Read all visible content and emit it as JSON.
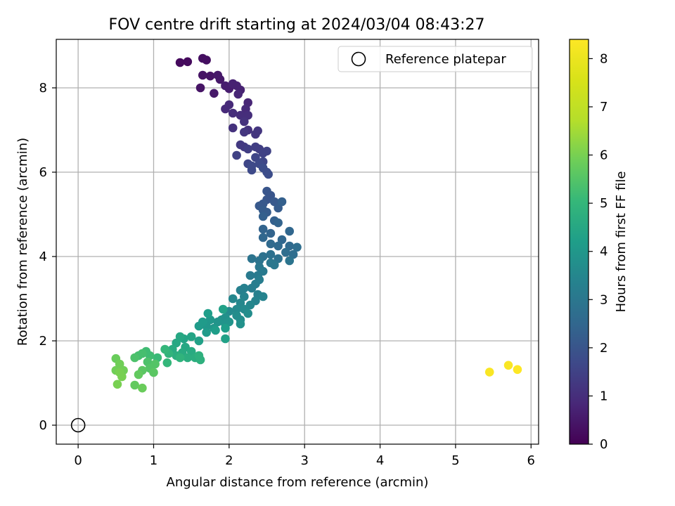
{
  "chart_data": {
    "type": "scatter",
    "title": "FOV centre drift starting at 2024/03/04 08:43:27",
    "xlabel": "Angular distance from reference (arcmin)",
    "ylabel": "Rotation from reference (arcmin)",
    "xlim": [
      -0.29,
      6.1
    ],
    "ylim": [
      -0.45,
      9.15
    ],
    "xticks": [
      0,
      1,
      2,
      3,
      4,
      5,
      6
    ],
    "yticks": [
      0,
      2,
      4,
      6,
      8
    ],
    "grid": true,
    "legend": {
      "position": "top-right",
      "entries": [
        {
          "label": "Reference platepar",
          "marker": "open-circle"
        }
      ]
    },
    "reference_point": {
      "x": 0,
      "y": 0
    },
    "colorbar": {
      "label": "Hours from first FF file",
      "colormap": "viridis",
      "range": [
        0,
        8.4
      ],
      "ticks": [
        0,
        1,
        2,
        3,
        4,
        5,
        6,
        7,
        8
      ]
    },
    "series": [
      {
        "color_by": "hours",
        "points": [
          {
            "x": 1.35,
            "y": 8.6,
            "c": 0.2
          },
          {
            "x": 1.45,
            "y": 8.62,
            "c": 0.2
          },
          {
            "x": 1.65,
            "y": 8.7,
            "c": 0.3
          },
          {
            "x": 1.7,
            "y": 8.66,
            "c": 0.3
          },
          {
            "x": 1.65,
            "y": 8.3,
            "c": 0.4
          },
          {
            "x": 1.75,
            "y": 8.28,
            "c": 0.4
          },
          {
            "x": 1.62,
            "y": 8.0,
            "c": 0.4
          },
          {
            "x": 1.85,
            "y": 8.3,
            "c": 0.5
          },
          {
            "x": 1.88,
            "y": 8.2,
            "c": 0.5
          },
          {
            "x": 1.8,
            "y": 7.87,
            "c": 0.5
          },
          {
            "x": 1.95,
            "y": 8.05,
            "c": 0.6
          },
          {
            "x": 2.0,
            "y": 7.98,
            "c": 0.6
          },
          {
            "x": 2.05,
            "y": 8.1,
            "c": 0.7
          },
          {
            "x": 2.1,
            "y": 8.05,
            "c": 0.7
          },
          {
            "x": 2.15,
            "y": 7.95,
            "c": 0.7
          },
          {
            "x": 2.12,
            "y": 7.85,
            "c": 0.8
          },
          {
            "x": 2.25,
            "y": 7.65,
            "c": 0.8
          },
          {
            "x": 2.22,
            "y": 7.5,
            "c": 0.9
          },
          {
            "x": 2.0,
            "y": 7.6,
            "c": 0.9
          },
          {
            "x": 1.95,
            "y": 7.5,
            "c": 0.9
          },
          {
            "x": 2.05,
            "y": 7.4,
            "c": 1.0
          },
          {
            "x": 2.15,
            "y": 7.35,
            "c": 1.0
          },
          {
            "x": 2.25,
            "y": 7.35,
            "c": 1.0
          },
          {
            "x": 2.2,
            "y": 7.2,
            "c": 1.1
          },
          {
            "x": 2.05,
            "y": 7.05,
            "c": 1.1
          },
          {
            "x": 2.25,
            "y": 7.0,
            "c": 1.1
          },
          {
            "x": 2.2,
            "y": 6.95,
            "c": 1.2
          },
          {
            "x": 2.35,
            "y": 6.9,
            "c": 1.2
          },
          {
            "x": 2.38,
            "y": 6.98,
            "c": 1.2
          },
          {
            "x": 2.15,
            "y": 6.65,
            "c": 1.3
          },
          {
            "x": 2.2,
            "y": 6.6,
            "c": 1.3
          },
          {
            "x": 2.25,
            "y": 6.55,
            "c": 1.4
          },
          {
            "x": 2.35,
            "y": 6.6,
            "c": 1.4
          },
          {
            "x": 2.4,
            "y": 6.55,
            "c": 1.4
          },
          {
            "x": 2.5,
            "y": 6.5,
            "c": 1.5
          },
          {
            "x": 2.45,
            "y": 6.45,
            "c": 1.5
          },
          {
            "x": 2.1,
            "y": 6.4,
            "c": 1.5
          },
          {
            "x": 2.35,
            "y": 6.35,
            "c": 1.6
          },
          {
            "x": 2.45,
            "y": 6.25,
            "c": 1.6
          },
          {
            "x": 2.25,
            "y": 6.2,
            "c": 1.6
          },
          {
            "x": 2.3,
            "y": 6.15,
            "c": 1.7
          },
          {
            "x": 2.4,
            "y": 6.2,
            "c": 1.7
          },
          {
            "x": 2.3,
            "y": 6.05,
            "c": 1.7
          },
          {
            "x": 2.45,
            "y": 6.1,
            "c": 1.8
          },
          {
            "x": 2.5,
            "y": 6.0,
            "c": 1.8
          },
          {
            "x": 2.52,
            "y": 5.95,
            "c": 1.8
          },
          {
            "x": 2.5,
            "y": 5.55,
            "c": 2.0
          },
          {
            "x": 2.55,
            "y": 5.45,
            "c": 2.0
          },
          {
            "x": 2.5,
            "y": 5.35,
            "c": 2.0
          },
          {
            "x": 2.6,
            "y": 5.3,
            "c": 2.1
          },
          {
            "x": 2.45,
            "y": 5.25,
            "c": 2.1
          },
          {
            "x": 2.4,
            "y": 5.2,
            "c": 2.1
          },
          {
            "x": 2.45,
            "y": 5.1,
            "c": 2.2
          },
          {
            "x": 2.5,
            "y": 5.05,
            "c": 2.2
          },
          {
            "x": 2.65,
            "y": 5.15,
            "c": 2.2
          },
          {
            "x": 2.7,
            "y": 5.3,
            "c": 2.3
          },
          {
            "x": 2.45,
            "y": 4.95,
            "c": 2.3
          },
          {
            "x": 2.6,
            "y": 4.85,
            "c": 2.3
          },
          {
            "x": 2.65,
            "y": 4.8,
            "c": 2.4
          },
          {
            "x": 2.45,
            "y": 4.65,
            "c": 2.4
          },
          {
            "x": 2.55,
            "y": 4.55,
            "c": 2.4
          },
          {
            "x": 2.8,
            "y": 4.6,
            "c": 2.5
          },
          {
            "x": 2.45,
            "y": 4.45,
            "c": 2.5
          },
          {
            "x": 2.7,
            "y": 4.4,
            "c": 2.5
          },
          {
            "x": 2.55,
            "y": 4.3,
            "c": 2.6
          },
          {
            "x": 2.65,
            "y": 4.25,
            "c": 2.6
          },
          {
            "x": 2.8,
            "y": 4.25,
            "c": 2.6
          },
          {
            "x": 2.9,
            "y": 4.22,
            "c": 2.7
          },
          {
            "x": 2.75,
            "y": 4.1,
            "c": 2.7
          },
          {
            "x": 2.85,
            "y": 4.05,
            "c": 2.7
          },
          {
            "x": 2.55,
            "y": 4.05,
            "c": 2.8
          },
          {
            "x": 2.45,
            "y": 4.0,
            "c": 2.8
          },
          {
            "x": 2.65,
            "y": 3.95,
            "c": 2.8
          },
          {
            "x": 2.8,
            "y": 3.9,
            "c": 2.9
          },
          {
            "x": 2.4,
            "y": 3.9,
            "c": 2.9
          },
          {
            "x": 2.3,
            "y": 3.95,
            "c": 2.9
          },
          {
            "x": 2.55,
            "y": 3.85,
            "c": 3.0
          },
          {
            "x": 2.6,
            "y": 3.8,
            "c": 3.0
          },
          {
            "x": 2.4,
            "y": 3.75,
            "c": 3.0
          },
          {
            "x": 2.45,
            "y": 3.65,
            "c": 3.1
          },
          {
            "x": 2.38,
            "y": 3.55,
            "c": 3.1
          },
          {
            "x": 2.28,
            "y": 3.55,
            "c": 3.1
          },
          {
            "x": 2.4,
            "y": 3.45,
            "c": 3.2
          },
          {
            "x": 2.35,
            "y": 3.35,
            "c": 3.2
          },
          {
            "x": 2.3,
            "y": 3.25,
            "c": 3.2
          },
          {
            "x": 2.2,
            "y": 3.25,
            "c": 3.3
          },
          {
            "x": 2.15,
            "y": 3.2,
            "c": 3.3
          },
          {
            "x": 2.38,
            "y": 3.1,
            "c": 3.3
          },
          {
            "x": 2.45,
            "y": 3.05,
            "c": 3.4
          },
          {
            "x": 2.35,
            "y": 2.95,
            "c": 3.4
          },
          {
            "x": 2.2,
            "y": 3.05,
            "c": 3.4
          },
          {
            "x": 2.05,
            "y": 3.0,
            "c": 3.5
          },
          {
            "x": 2.15,
            "y": 2.9,
            "c": 3.5
          },
          {
            "x": 2.28,
            "y": 2.85,
            "c": 3.5
          },
          {
            "x": 2.2,
            "y": 2.75,
            "c": 3.6
          },
          {
            "x": 2.1,
            "y": 2.75,
            "c": 3.6
          },
          {
            "x": 2.0,
            "y": 2.7,
            "c": 3.6
          },
          {
            "x": 2.25,
            "y": 2.65,
            "c": 3.7
          },
          {
            "x": 2.1,
            "y": 2.6,
            "c": 3.7
          },
          {
            "x": 2.15,
            "y": 2.5,
            "c": 3.7
          },
          {
            "x": 1.95,
            "y": 2.55,
            "c": 3.8
          },
          {
            "x": 1.9,
            "y": 2.5,
            "c": 3.8
          },
          {
            "x": 2.15,
            "y": 2.4,
            "c": 3.8
          },
          {
            "x": 2.0,
            "y": 2.45,
            "c": 3.9
          },
          {
            "x": 1.95,
            "y": 2.4,
            "c": 3.9
          },
          {
            "x": 1.85,
            "y": 2.45,
            "c": 3.9
          },
          {
            "x": 1.75,
            "y": 2.5,
            "c": 4.0
          },
          {
            "x": 1.8,
            "y": 2.3,
            "c": 4.0
          },
          {
            "x": 1.7,
            "y": 2.35,
            "c": 4.0
          },
          {
            "x": 1.65,
            "y": 2.45,
            "c": 4.1
          },
          {
            "x": 1.6,
            "y": 2.35,
            "c": 4.1
          },
          {
            "x": 1.7,
            "y": 2.2,
            "c": 4.1
          },
          {
            "x": 1.82,
            "y": 2.25,
            "c": 4.2
          },
          {
            "x": 1.95,
            "y": 2.3,
            "c": 4.2
          },
          {
            "x": 1.72,
            "y": 2.65,
            "c": 4.2
          },
          {
            "x": 1.92,
            "y": 2.75,
            "c": 4.3
          },
          {
            "x": 1.95,
            "y": 2.05,
            "c": 4.3
          },
          {
            "x": 1.6,
            "y": 2.0,
            "c": 4.3
          },
          {
            "x": 1.5,
            "y": 2.1,
            "c": 4.4
          },
          {
            "x": 1.4,
            "y": 2.05,
            "c": 4.4
          },
          {
            "x": 1.35,
            "y": 2.1,
            "c": 4.5
          },
          {
            "x": 1.3,
            "y": 1.95,
            "c": 4.5
          },
          {
            "x": 1.42,
            "y": 1.85,
            "c": 4.5
          },
          {
            "x": 1.5,
            "y": 1.75,
            "c": 4.6
          },
          {
            "x": 1.38,
            "y": 1.72,
            "c": 4.6
          },
          {
            "x": 1.25,
            "y": 1.8,
            "c": 4.6
          },
          {
            "x": 1.3,
            "y": 1.65,
            "c": 4.7
          },
          {
            "x": 1.45,
            "y": 1.6,
            "c": 4.7
          },
          {
            "x": 1.55,
            "y": 1.6,
            "c": 4.7
          },
          {
            "x": 1.62,
            "y": 1.55,
            "c": 4.8
          },
          {
            "x": 1.6,
            "y": 1.65,
            "c": 4.8
          },
          {
            "x": 1.35,
            "y": 1.6,
            "c": 4.9
          },
          {
            "x": 1.2,
            "y": 1.7,
            "c": 4.9
          },
          {
            "x": 1.15,
            "y": 1.8,
            "c": 5.0
          },
          {
            "x": 1.18,
            "y": 1.48,
            "c": 5.0
          },
          {
            "x": 1.05,
            "y": 1.6,
            "c": 5.1
          },
          {
            "x": 0.95,
            "y": 1.65,
            "c": 5.2
          },
          {
            "x": 0.9,
            "y": 1.75,
            "c": 5.2
          },
          {
            "x": 0.85,
            "y": 1.7,
            "c": 5.3
          },
          {
            "x": 0.8,
            "y": 1.65,
            "c": 5.3
          },
          {
            "x": 0.75,
            "y": 1.6,
            "c": 5.4
          },
          {
            "x": 0.92,
            "y": 1.5,
            "c": 5.4
          },
          {
            "x": 1.02,
            "y": 1.45,
            "c": 5.5
          },
          {
            "x": 0.95,
            "y": 1.35,
            "c": 5.5
          },
          {
            "x": 1.0,
            "y": 1.25,
            "c": 5.6
          },
          {
            "x": 0.85,
            "y": 1.3,
            "c": 5.6
          },
          {
            "x": 0.8,
            "y": 1.2,
            "c": 5.7
          },
          {
            "x": 0.75,
            "y": 0.95,
            "c": 5.7
          },
          {
            "x": 0.85,
            "y": 0.88,
            "c": 5.8
          },
          {
            "x": 0.5,
            "y": 1.58,
            "c": 5.8
          },
          {
            "x": 0.55,
            "y": 1.45,
            "c": 5.9
          },
          {
            "x": 0.5,
            "y": 1.3,
            "c": 5.9
          },
          {
            "x": 0.6,
            "y": 1.3,
            "c": 5.9
          },
          {
            "x": 0.55,
            "y": 1.25,
            "c": 6.0
          },
          {
            "x": 0.58,
            "y": 1.15,
            "c": 6.0
          },
          {
            "x": 0.52,
            "y": 0.97,
            "c": 6.0
          },
          {
            "x": 5.45,
            "y": 1.26,
            "c": 8.3
          },
          {
            "x": 5.7,
            "y": 1.42,
            "c": 8.3
          },
          {
            "x": 5.82,
            "y": 1.32,
            "c": 8.4
          }
        ]
      }
    ]
  }
}
